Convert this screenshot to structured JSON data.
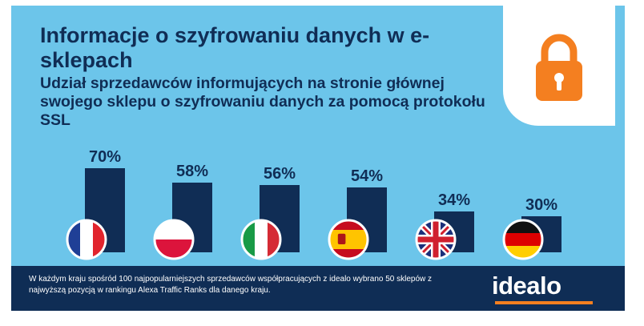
{
  "header": {
    "title": "Informacje o szyfrowaniu danych w e-sklepach",
    "subtitle": "Udział sprzedawców informujących na stronie głównej swojego sklepu o szyfrowaniu danych za pomocą protokołu SSL"
  },
  "footer": {
    "note": "W każdym kraju spośród 100 najpopularniejszych sprzedawców współpracujących z idealo wybrano 50 sklepów z najwyższą pozycją w rankingu Alexa Traffic Ranks dla danego kraju.",
    "logo": "idealo"
  },
  "icons": {
    "lock": "lock-icon"
  },
  "colors": {
    "background": "#6cc5ea",
    "bar": "#102d55",
    "text": "#102d55",
    "footer": "#0f2d55",
    "accent": "#f47f20"
  },
  "chart_data": {
    "type": "bar",
    "title": "Informacje o szyfrowaniu danych w e-sklepach",
    "subtitle": "Udział sprzedawców informujących na stronie głównej swojego sklepu o szyfrowaniu danych za pomocą protokołu SSL",
    "categories": [
      "Francja",
      "Polska",
      "Włochy",
      "Hiszpania",
      "Wielka Brytania",
      "Niemcy"
    ],
    "flags": [
      "flag-france-icon",
      "flag-poland-icon",
      "flag-italy-icon",
      "flag-spain-icon",
      "flag-uk-icon",
      "flag-germany-icon"
    ],
    "values": [
      70,
      58,
      56,
      54,
      34,
      30
    ],
    "labels": [
      "70%",
      "58%",
      "56%",
      "54%",
      "34%",
      "30%"
    ],
    "ylim": [
      0,
      100
    ],
    "unit": "%",
    "xlabel": "",
    "ylabel": "",
    "grid": false
  }
}
